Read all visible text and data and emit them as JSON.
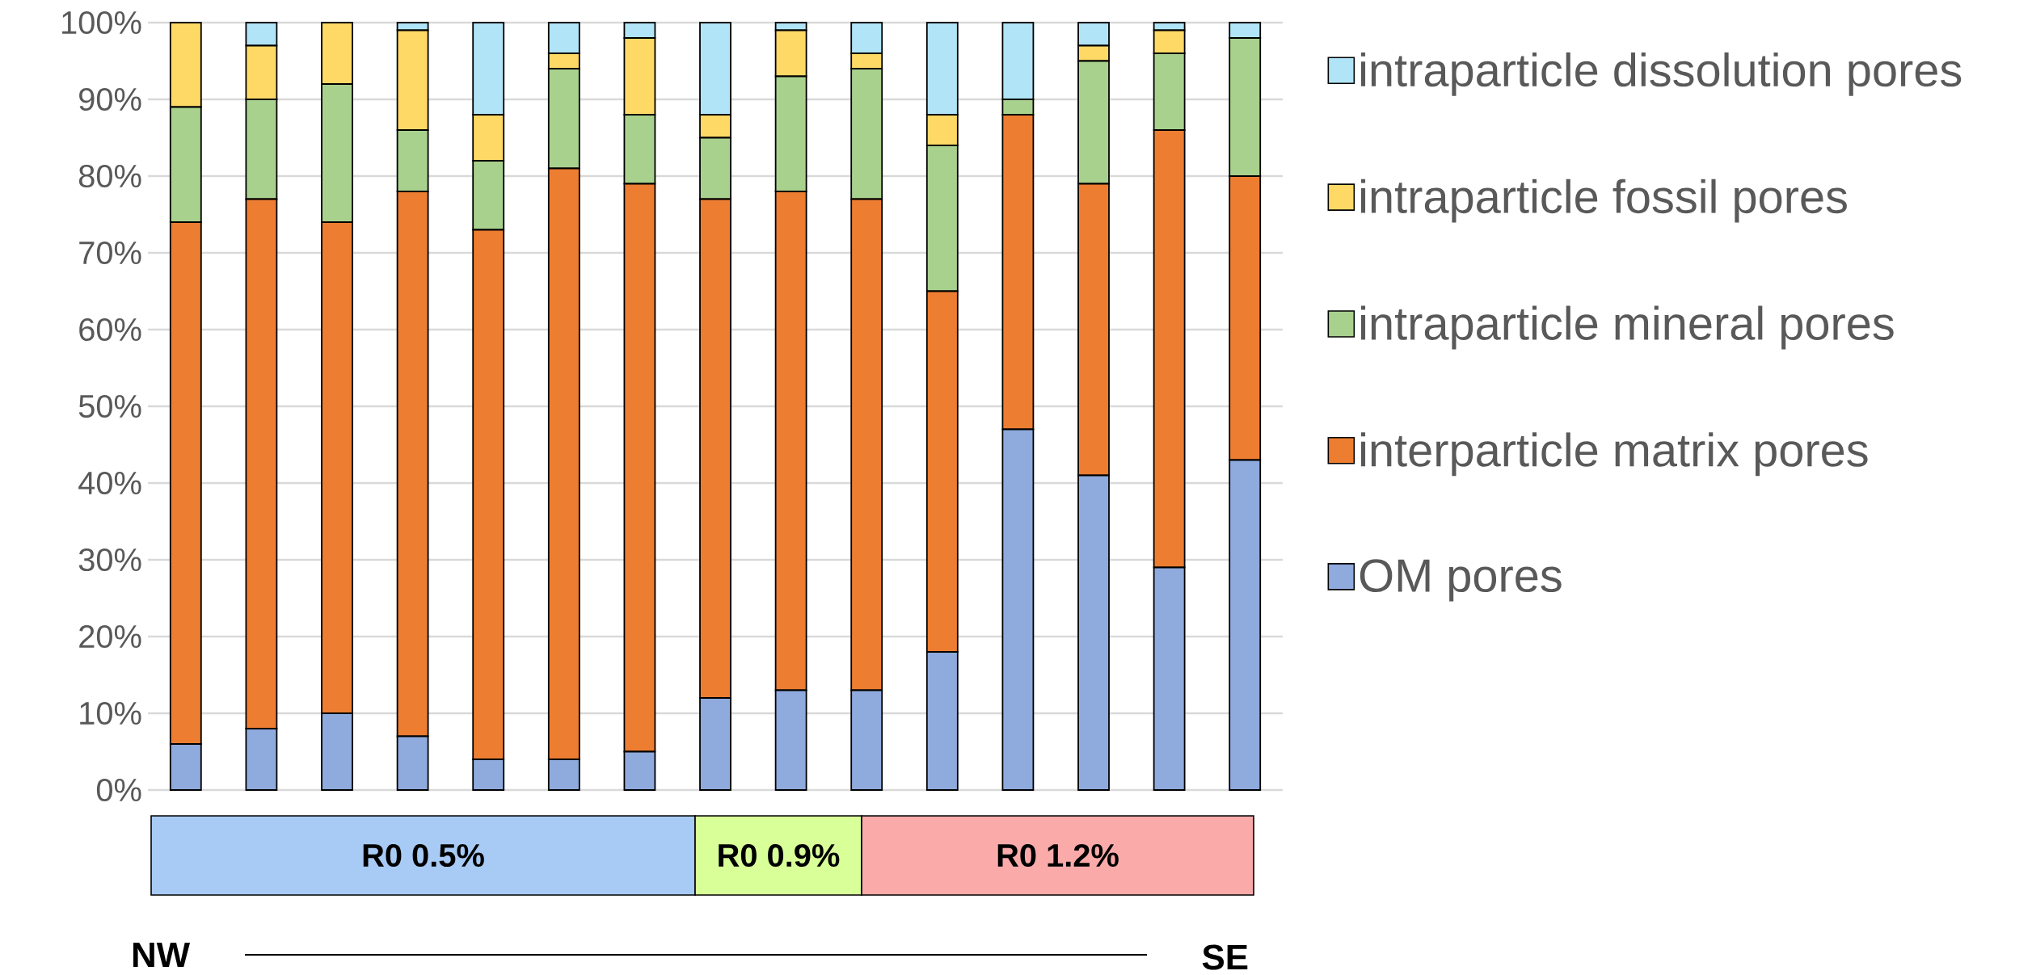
{
  "chart_data": {
    "type": "bar",
    "stacked": true,
    "categories": [
      null,
      null,
      null,
      null,
      null,
      null,
      null,
      null,
      null,
      null,
      null,
      null,
      null,
      null,
      null
    ],
    "series": [
      {
        "name": "OM pores",
        "color": "#8faadc",
        "values": [
          6,
          8,
          10,
          7,
          4,
          4,
          5,
          12,
          13,
          13,
          18,
          47,
          41,
          29,
          43
        ]
      },
      {
        "name": "interparticle matrix pores",
        "color": "#ed7d31",
        "values": [
          68,
          69,
          64,
          71,
          69,
          77,
          74,
          65,
          65,
          64,
          47,
          41,
          38,
          57,
          37
        ]
      },
      {
        "name": "intraparticle mineral pores",
        "color": "#a9d18e",
        "values": [
          15,
          13,
          18,
          8,
          9,
          13,
          9,
          8,
          15,
          17,
          19,
          2,
          16,
          10,
          18
        ]
      },
      {
        "name": "intraparticle fossil pores",
        "color": "#ffd966",
        "values": [
          11,
          7,
          8,
          13,
          6,
          2,
          10,
          3,
          6,
          2,
          4,
          0,
          2,
          3,
          0
        ]
      },
      {
        "name": "intraparticle dissolution pores",
        "color": "#b0e4f6",
        "values": [
          0,
          3,
          0,
          1,
          12,
          4,
          2,
          12,
          1,
          4,
          12,
          10,
          3,
          1,
          2
        ]
      }
    ],
    "ylim": [
      0,
      100
    ],
    "yticks": [
      {
        "value": 0,
        "label": "0%"
      },
      {
        "value": 10,
        "label": "10%"
      },
      {
        "value": 20,
        "label": "20%"
      },
      {
        "value": 30,
        "label": "30%"
      },
      {
        "value": 40,
        "label": "40%"
      },
      {
        "value": 50,
        "label": "50%"
      },
      {
        "value": 60,
        "label": "60%"
      },
      {
        "value": 70,
        "label": "70%"
      },
      {
        "value": 80,
        "label": "80%"
      },
      {
        "value": 90,
        "label": "90%"
      },
      {
        "value": 100,
        "label": "100%"
      }
    ],
    "grid": "y",
    "legend": "right",
    "annotations": [
      "R0 0.5%",
      "R0 0.9%",
      "R0 1.2%",
      "NW",
      "SE"
    ]
  }
}
